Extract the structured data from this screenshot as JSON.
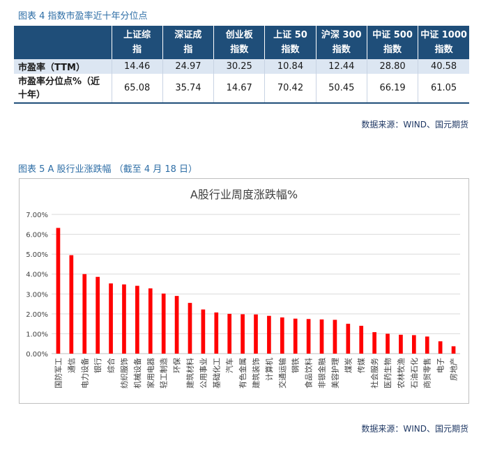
{
  "figure4": {
    "title": "图表 4 指数市盈率近十年分位点",
    "headers": [
      "",
      "上证综\n指",
      "深证成\n指",
      "创业板\n指数",
      "上证 50\n指数",
      "沪深 300\n指数",
      "中证 500\n指数",
      "中证 1000\n指数"
    ],
    "rows": [
      {
        "label": "市盈率（TTM）",
        "values": [
          "14.46",
          "24.97",
          "30.25",
          "10.84",
          "12.44",
          "28.80",
          "40.58"
        ]
      },
      {
        "label": "市盈率分位点%（近\n十年）",
        "values": [
          "65.08",
          "35.74",
          "14.67",
          "70.42",
          "50.45",
          "66.19",
          "61.05"
        ]
      }
    ],
    "source": "数据来源：WIND、国元期货"
  },
  "figure5": {
    "caption": "图表 5 A 股行业涨跌幅 （截至 4 月 18 日）",
    "source": "数据来源：WIND、国元期货"
  },
  "chart_data": {
    "type": "bar",
    "title": "A股行业周度涨跌幅%",
    "xlabel": "",
    "ylabel": "",
    "categories": [
      "国防军工",
      "通信",
      "电力设备",
      "银行",
      "综合",
      "纺织服饰",
      "机械设备",
      "家用电器",
      "轻工制造",
      "环保",
      "建筑材料",
      "公用事业",
      "基础化工",
      "汽车",
      "有色金属",
      "建筑装饰",
      "计算机",
      "交通运输",
      "钢铁",
      "食品饮料",
      "非银金融",
      "美容护理",
      "煤炭",
      "传媒",
      "社会服务",
      "医药生物",
      "农林牧渔",
      "石油石化",
      "商贸零售",
      "电子",
      "房地产"
    ],
    "values": [
      6.32,
      4.95,
      4.0,
      3.86,
      3.53,
      3.48,
      3.41,
      3.28,
      3.02,
      2.9,
      2.55,
      2.22,
      2.07,
      2.0,
      1.98,
      1.97,
      1.9,
      1.82,
      1.76,
      1.74,
      1.72,
      1.7,
      1.5,
      1.4,
      1.08,
      1.0,
      0.95,
      0.93,
      0.86,
      0.62,
      0.37
    ],
    "ylim": [
      0,
      7
    ],
    "yticks": [
      "0.00%",
      "1.00%",
      "2.00%",
      "3.00%",
      "4.00%",
      "5.00%",
      "6.00%",
      "7.00%"
    ],
    "grid": true,
    "bar_color": "#ff0000",
    "legend": "none"
  }
}
